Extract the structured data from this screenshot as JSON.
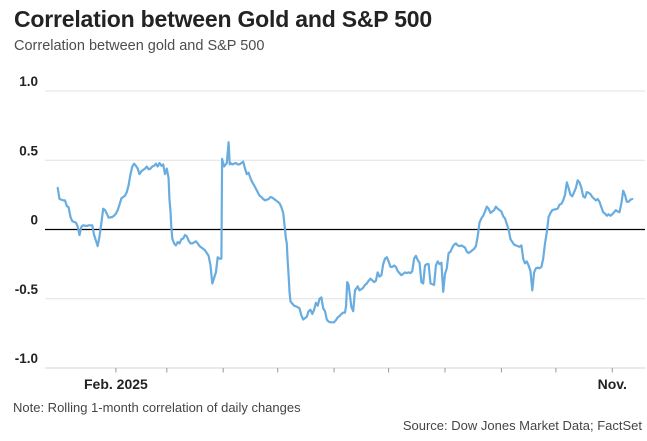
{
  "header": {
    "title": "Correlation between Gold and S&P 500",
    "subtitle": "Correlation between gold and S&P 500"
  },
  "footer": {
    "note": "Note: Rolling 1-month correlation of daily changes",
    "source": "Source: Dow Jones Market Data; FactSet"
  },
  "colors": {
    "line": "#69acdf",
    "grid": "#e2e2e2",
    "axis_line": "#d6d6d6",
    "zero_line": "#000000",
    "tick": "#999999",
    "axis_text": "#222222",
    "title": "#232323",
    "subtitle": "#4d4d4d",
    "footnote": "#454545"
  },
  "chart_data": {
    "type": "line",
    "title": "Correlation between Gold and S&P 500",
    "series_name": "Rolling 1-month correlation of gold and S&P 500 daily changes",
    "xlabel": "",
    "ylabel": "",
    "x_unit": "day_of_year_2025",
    "xlim": [
      -7,
      323
    ],
    "ylim": [
      -1.0,
      1.0
    ],
    "grid": true,
    "legend": false,
    "y_ticks": [
      {
        "value": 1.0,
        "label": "1.0"
      },
      {
        "value": 0.5,
        "label": "0.5"
      },
      {
        "value": 0,
        "label": "0"
      },
      {
        "value": -0.5,
        "label": "-0.5"
      },
      {
        "value": -1.0,
        "label": "-1.0"
      }
    ],
    "x_ticks": [
      {
        "day": 32,
        "label": "Feb. 2025"
      },
      {
        "day": 60,
        "label": ""
      },
      {
        "day": 91,
        "label": ""
      },
      {
        "day": 121,
        "label": ""
      },
      {
        "day": 152,
        "label": ""
      },
      {
        "day": 182,
        "label": ""
      },
      {
        "day": 213,
        "label": ""
      },
      {
        "day": 244,
        "label": ""
      },
      {
        "day": 274,
        "label": ""
      },
      {
        "day": 305,
        "label": "Nov."
      }
    ],
    "points": [
      [
        0,
        0.3
      ],
      [
        1,
        0.22
      ],
      [
        3,
        0.21
      ],
      [
        4,
        0.21
      ],
      [
        5,
        0.17
      ],
      [
        6,
        0.16
      ],
      [
        7,
        0.09
      ],
      [
        8,
        0.06
      ],
      [
        10,
        0.05
      ],
      [
        11,
        0.02
      ],
      [
        12,
        -0.04
      ],
      [
        13,
        0.02
      ],
      [
        14,
        0.03
      ],
      [
        16,
        0.025
      ],
      [
        17,
        0.03
      ],
      [
        19,
        0.03
      ],
      [
        20,
        -0.04
      ],
      [
        21,
        -0.08
      ],
      [
        22,
        -0.12
      ],
      [
        23,
        -0.05
      ],
      [
        24,
        0.05
      ],
      [
        25,
        0.15
      ],
      [
        26,
        0.14
      ],
      [
        27,
        0.115
      ],
      [
        28,
        0.085
      ],
      [
        30,
        0.09
      ],
      [
        31,
        0.1
      ],
      [
        32,
        0.115
      ],
      [
        33,
        0.14
      ],
      [
        34,
        0.18
      ],
      [
        35,
        0.225
      ],
      [
        36,
        0.235
      ],
      [
        37,
        0.245
      ],
      [
        38,
        0.27
      ],
      [
        39,
        0.32
      ],
      [
        40,
        0.4
      ],
      [
        41,
        0.455
      ],
      [
        42,
        0.475
      ],
      [
        43,
        0.46
      ],
      [
        44,
        0.44
      ],
      [
        45,
        0.4
      ],
      [
        46,
        0.42
      ],
      [
        47,
        0.43
      ],
      [
        48,
        0.44
      ],
      [
        49,
        0.455
      ],
      [
        50,
        0.435
      ],
      [
        51,
        0.44
      ],
      [
        52,
        0.455
      ],
      [
        53,
        0.46
      ],
      [
        54,
        0.475
      ],
      [
        55,
        0.455
      ],
      [
        56,
        0.48
      ],
      [
        57,
        0.46
      ],
      [
        58,
        0.47
      ],
      [
        59,
        0.4
      ],
      [
        60,
        0.44
      ],
      [
        61,
        0.37
      ],
      [
        61.4,
        0.225
      ],
      [
        62,
        0.13
      ],
      [
        62.4,
        0.03
      ],
      [
        63,
        -0.065
      ],
      [
        64,
        -0.1
      ],
      [
        65,
        -0.115
      ],
      [
        66,
        -0.09
      ],
      [
        67,
        -0.1
      ],
      [
        68,
        -0.07
      ],
      [
        69,
        -0.065
      ],
      [
        70,
        -0.04
      ],
      [
        71,
        -0.05
      ],
      [
        72,
        -0.08
      ],
      [
        73,
        -0.1
      ],
      [
        74,
        -0.1
      ],
      [
        76,
        -0.085
      ],
      [
        77,
        -0.1
      ],
      [
        78,
        -0.12
      ],
      [
        79,
        -0.13
      ],
      [
        80,
        -0.14
      ],
      [
        81,
        -0.15
      ],
      [
        82,
        -0.17
      ],
      [
        83,
        -0.19
      ],
      [
        84,
        -0.26
      ],
      [
        85,
        -0.39
      ],
      [
        87,
        -0.31
      ],
      [
        88,
        -0.2
      ],
      [
        89,
        -0.21
      ],
      [
        90,
        -0.21
      ],
      [
        90.4,
        0.51
      ],
      [
        91.5,
        0.455
      ],
      [
        93,
        0.48
      ],
      [
        94,
        0.63
      ],
      [
        94.6,
        0.47
      ],
      [
        95,
        0.48
      ],
      [
        96,
        0.47
      ],
      [
        97,
        0.475
      ],
      [
        98,
        0.48
      ],
      [
        99,
        0.47
      ],
      [
        100,
        0.47
      ],
      [
        101,
        0.48
      ],
      [
        102,
        0.49
      ],
      [
        103,
        0.44
      ],
      [
        104,
        0.4
      ],
      [
        105,
        0.41
      ],
      [
        106,
        0.37
      ],
      [
        107,
        0.34
      ],
      [
        108,
        0.32
      ],
      [
        110,
        0.27
      ],
      [
        111,
        0.245
      ],
      [
        112,
        0.235
      ],
      [
        113,
        0.22
      ],
      [
        114,
        0.21
      ],
      [
        115,
        0.215
      ],
      [
        116,
        0.22
      ],
      [
        117,
        0.235
      ],
      [
        118,
        0.23
      ],
      [
        119,
        0.22
      ],
      [
        121,
        0.2
      ],
      [
        122,
        0.19
      ],
      [
        123,
        0.16
      ],
      [
        124,
        0.12
      ],
      [
        124.5,
        0.06
      ],
      [
        125,
        0
      ],
      [
        125.5,
        -0.065
      ],
      [
        126,
        -0.1
      ],
      [
        126.5,
        -0.23
      ],
      [
        127,
        -0.33
      ],
      [
        127.5,
        -0.45
      ],
      [
        128,
        -0.52
      ],
      [
        130,
        -0.55
      ],
      [
        131,
        -0.555
      ],
      [
        132,
        -0.56
      ],
      [
        133,
        -0.57
      ],
      [
        134,
        -0.62
      ],
      [
        135,
        -0.65
      ],
      [
        137,
        -0.63
      ],
      [
        138,
        -0.59
      ],
      [
        139,
        -0.58
      ],
      [
        140,
        -0.61
      ],
      [
        141,
        -0.58
      ],
      [
        142,
        -0.53
      ],
      [
        143,
        -0.55
      ],
      [
        144,
        -0.5
      ],
      [
        145,
        -0.49
      ],
      [
        146,
        -0.57
      ],
      [
        147,
        -0.59
      ],
      [
        148,
        -0.65
      ],
      [
        149,
        -0.665
      ],
      [
        150,
        -0.67
      ],
      [
        152,
        -0.67
      ],
      [
        153,
        -0.655
      ],
      [
        154,
        -0.635
      ],
      [
        155,
        -0.625
      ],
      [
        156,
        -0.61
      ],
      [
        157,
        -0.6
      ],
      [
        158,
        -0.6
      ],
      [
        158.6,
        -0.55
      ],
      [
        159.2,
        -0.38
      ],
      [
        160,
        -0.4
      ],
      [
        161.5,
        -0.56
      ],
      [
        162.5,
        -0.59
      ],
      [
        163.5,
        -0.44
      ],
      [
        165,
        -0.41
      ],
      [
        166,
        -0.44
      ],
      [
        167,
        -0.43
      ],
      [
        168,
        -0.42
      ],
      [
        169,
        -0.4
      ],
      [
        170,
        -0.39
      ],
      [
        171,
        -0.37
      ],
      [
        172,
        -0.355
      ],
      [
        174,
        -0.38
      ],
      [
        175,
        -0.37
      ],
      [
        176,
        -0.31
      ],
      [
        177,
        -0.34
      ],
      [
        178,
        -0.33
      ],
      [
        179,
        -0.25
      ],
      [
        180,
        -0.21
      ],
      [
        181,
        -0.2
      ],
      [
        182,
        -0.23
      ],
      [
        183,
        -0.27
      ],
      [
        184,
        -0.27
      ],
      [
        185,
        -0.26
      ],
      [
        186,
        -0.27
      ],
      [
        187,
        -0.3
      ],
      [
        188,
        -0.315
      ],
      [
        189,
        -0.33
      ],
      [
        191,
        -0.31
      ],
      [
        192,
        -0.315
      ],
      [
        193,
        -0.31
      ],
      [
        194,
        -0.315
      ],
      [
        195,
        -0.3
      ],
      [
        196,
        -0.21
      ],
      [
        197,
        -0.19
      ],
      [
        198,
        -0.22
      ],
      [
        199,
        -0.24
      ],
      [
        200,
        -0.38
      ],
      [
        201,
        -0.39
      ],
      [
        202,
        -0.26
      ],
      [
        203,
        -0.25
      ],
      [
        204,
        -0.25
      ],
      [
        205,
        -0.39
      ],
      [
        207,
        -0.4
      ],
      [
        208,
        -0.26
      ],
      [
        209,
        -0.23
      ],
      [
        210,
        -0.25
      ],
      [
        211,
        -0.24
      ],
      [
        212,
        -0.45
      ],
      [
        213,
        -0.32
      ],
      [
        214,
        -0.28
      ],
      [
        215,
        -0.17
      ],
      [
        216,
        -0.16
      ],
      [
        217,
        -0.13
      ],
      [
        218,
        -0.11
      ],
      [
        219,
        -0.1
      ],
      [
        220,
        -0.115
      ],
      [
        221,
        -0.12
      ],
      [
        222,
        -0.115
      ],
      [
        224,
        -0.13
      ],
      [
        225,
        -0.16
      ],
      [
        226,
        -0.17
      ],
      [
        227,
        -0.16
      ],
      [
        228,
        -0.15
      ],
      [
        229,
        -0.14
      ],
      [
        230,
        -0.12
      ],
      [
        231,
        -0.05
      ],
      [
        232,
        0.05
      ],
      [
        233,
        0.08
      ],
      [
        234,
        0.1
      ],
      [
        235,
        0.13
      ],
      [
        236,
        0.165
      ],
      [
        237,
        0.15
      ],
      [
        238,
        0.12
      ],
      [
        240,
        0.14
      ],
      [
        241,
        0.165
      ],
      [
        242,
        0.15
      ],
      [
        243,
        0.14
      ],
      [
        244,
        0.13
      ],
      [
        245,
        0.095
      ],
      [
        246,
        0.08
      ],
      [
        247,
        0.04
      ],
      [
        248,
        0
      ],
      [
        249,
        -0.07
      ],
      [
        251,
        -0.11
      ],
      [
        252,
        -0.115
      ],
      [
        253,
        -0.12
      ],
      [
        254,
        -0.125
      ],
      [
        255,
        -0.115
      ],
      [
        256,
        -0.21
      ],
      [
        257,
        -0.245
      ],
      [
        258,
        -0.23
      ],
      [
        259,
        -0.26
      ],
      [
        260,
        -0.3
      ],
      [
        261,
        -0.44
      ],
      [
        262,
        -0.31
      ],
      [
        263,
        -0.28
      ],
      [
        264,
        -0.275
      ],
      [
        265,
        -0.28
      ],
      [
        266,
        -0.27
      ],
      [
        267,
        -0.21
      ],
      [
        268,
        -0.1
      ],
      [
        269,
        -0.02
      ],
      [
        270,
        0.09
      ],
      [
        271,
        0.12
      ],
      [
        272,
        0.14
      ],
      [
        275,
        0.15
      ],
      [
        276,
        0.18
      ],
      [
        277,
        0.185
      ],
      [
        278,
        0.21
      ],
      [
        279,
        0.25
      ],
      [
        280,
        0.34
      ],
      [
        281,
        0.3
      ],
      [
        282,
        0.25
      ],
      [
        283,
        0.24
      ],
      [
        285,
        0.3
      ],
      [
        286,
        0.355
      ],
      [
        287,
        0.34
      ],
      [
        288,
        0.3
      ],
      [
        289,
        0.24
      ],
      [
        290,
        0.23
      ],
      [
        291,
        0.27
      ],
      [
        292,
        0.265
      ],
      [
        293,
        0.255
      ],
      [
        294,
        0.235
      ],
      [
        296,
        0.21
      ],
      [
        297,
        0.22
      ],
      [
        298,
        0.2
      ],
      [
        299,
        0.16
      ],
      [
        300,
        0.125
      ],
      [
        301,
        0.115
      ],
      [
        302,
        0.1
      ],
      [
        303,
        0.11
      ],
      [
        304,
        0.1
      ],
      [
        305,
        0.11
      ],
      [
        307,
        0.14
      ],
      [
        308,
        0.13
      ],
      [
        309,
        0.125
      ],
      [
        310,
        0.19
      ],
      [
        311,
        0.28
      ],
      [
        312,
        0.25
      ],
      [
        313,
        0.2
      ],
      [
        314,
        0.2
      ],
      [
        315,
        0.215
      ],
      [
        316,
        0.22
      ]
    ]
  }
}
